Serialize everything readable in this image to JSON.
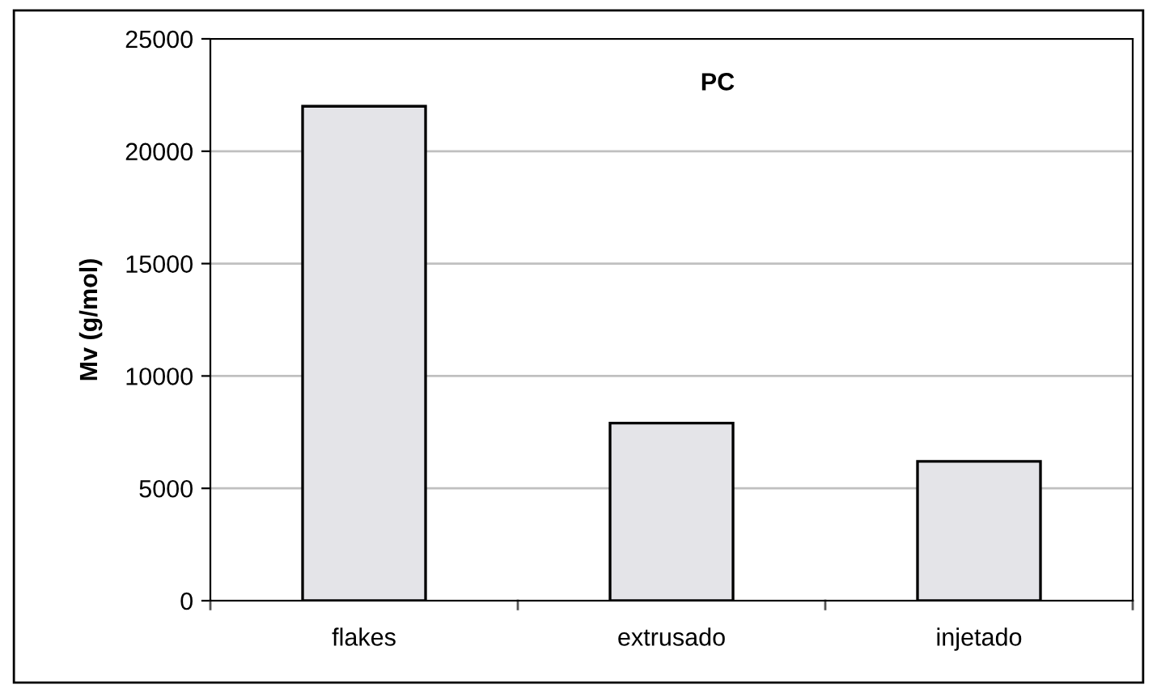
{
  "chart_data": {
    "type": "bar",
    "title": "PC",
    "ylabel": "Mv (g/mol)",
    "categories": [
      "flakes",
      "extrusado",
      "injetado"
    ],
    "values": [
      22000,
      7900,
      6200
    ],
    "color": "#e4e4e8",
    "ylim": [
      0,
      25000
    ],
    "yticks": [
      0,
      5000,
      10000,
      15000,
      20000,
      25000
    ],
    "grid": "y"
  }
}
